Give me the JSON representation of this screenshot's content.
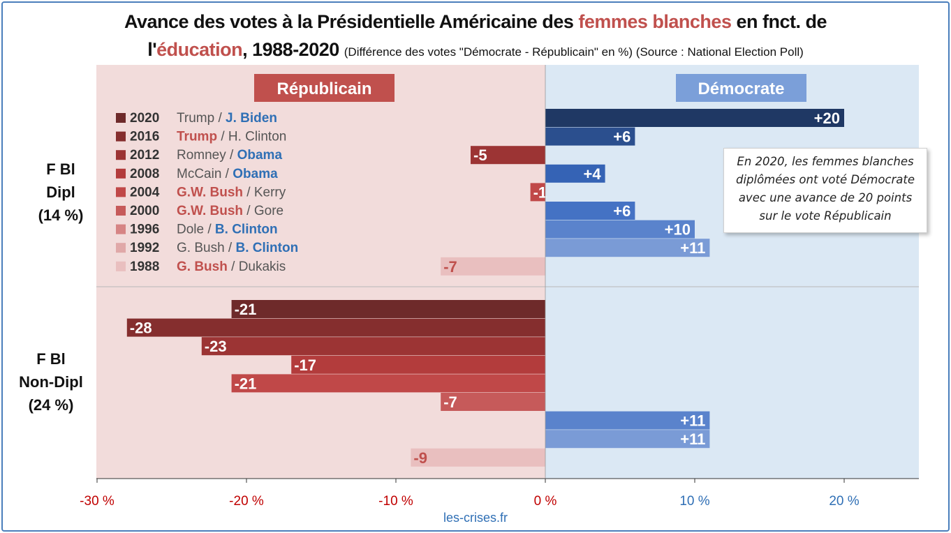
{
  "title": {
    "line1_a": "Avance des votes à la Présidentielle Américaine des ",
    "line1_b": "femmes blanches",
    "line1_c": " en fnct. de",
    "line2_a": "l'",
    "line2_b": "éducation",
    "line2_c": ", 1988-2020 ",
    "line2_d": "(Différence des votes \"Démocrate - Républicain\" en %) (Source : National Election Poll)"
  },
  "panels": {
    "republicain": "Républicain",
    "democrate": "Démocrate"
  },
  "groups": {
    "dipl": {
      "line1": "F Bl",
      "line2": "Dipl",
      "line3": "(14 %)"
    },
    "nondipl": {
      "line1": "F Bl",
      "line2": "Non-Dipl",
      "line3": "(24 %)"
    }
  },
  "callout": {
    "line1": "En 2020, les femmes blanches",
    "line2": "diplômées ont voté Démocrate",
    "line3": "avec une avance de 20 points",
    "line4": "sur le vote Républicain"
  },
  "source": "les-crises.fr",
  "colors": {
    "rep_bg": "#f2dcdb",
    "dem_bg": "#dbe8f4",
    "rep_label": "#c0504d",
    "dem_label": "#2f6fb5",
    "rep_header": "#c0504d",
    "dem_header": "#7b9fd9"
  },
  "chart_data": {
    "type": "bar",
    "orientation": "horizontal",
    "xlim": [
      -30,
      25
    ],
    "x_ticks": [
      -30,
      -20,
      -10,
      0,
      10,
      20
    ],
    "x_tick_labels": [
      "-30 %",
      "-20 %",
      "-10 %",
      "0 %",
      "10 %",
      "20 %"
    ],
    "legend": [
      {
        "year": "2020",
        "rep": "Trump",
        "dem": "J. Biden",
        "winner": "dem",
        "rep_color": "#6e2a2a",
        "dem_color": "#1f3864"
      },
      {
        "year": "2016",
        "rep": "Trump",
        "dem": "H. Clinton",
        "winner": "rep",
        "rep_color": "#852e2e",
        "dem_color": "#2b4f8e"
      },
      {
        "year": "2012",
        "rep": "Romney",
        "dem": "Obama",
        "winner": "dem",
        "rep_color": "#9c3434",
        "dem_color": "#2f5ba4"
      },
      {
        "year": "2008",
        "rep": "McCain",
        "dem": "Obama",
        "winner": "dem",
        "rep_color": "#b33c3c",
        "dem_color": "#3563b5"
      },
      {
        "year": "2004",
        "rep": "G.W. Bush",
        "dem": "Kerry",
        "winner": "rep",
        "rep_color": "#c04848",
        "dem_color": "#3d6cc2"
      },
      {
        "year": "2000",
        "rep": "G.W. Bush",
        "dem": "Gore",
        "winner": "rep",
        "rep_color": "#c65a5a",
        "dem_color": "#4472c4"
      },
      {
        "year": "1996",
        "rep": "Dole",
        "dem": "B. Clinton",
        "winner": "dem",
        "rep_color": "#d68484",
        "dem_color": "#5a83cc"
      },
      {
        "year": "1992",
        "rep": "G. Bush",
        "dem": "B. Clinton",
        "winner": "dem",
        "rep_color": "#e0a8a8",
        "dem_color": "#7a9bd6"
      },
      {
        "year": "1988",
        "rep": "G. Bush",
        "dem": "Dukakis",
        "winner": "rep",
        "rep_color": "#e9bfbf",
        "dem_color": "#9ab4e0"
      }
    ],
    "series": [
      {
        "name": "F Bl Dipl (14 %)",
        "values": [
          20,
          6,
          -5,
          4,
          -1,
          6,
          10,
          11,
          -7
        ],
        "labels": [
          "+20",
          "+6",
          "-5",
          "+4",
          "-1",
          "+6",
          "+10",
          "+11",
          "-7"
        ]
      },
      {
        "name": "F Bl Non-Dipl (24 %)",
        "values": [
          -21,
          -28,
          -23,
          -17,
          -21,
          -7,
          11,
          11,
          -9
        ],
        "labels": [
          "-21",
          "-28",
          "-23",
          "-17",
          "-21",
          "-7",
          "+11",
          "+11",
          "-9"
        ]
      }
    ]
  }
}
